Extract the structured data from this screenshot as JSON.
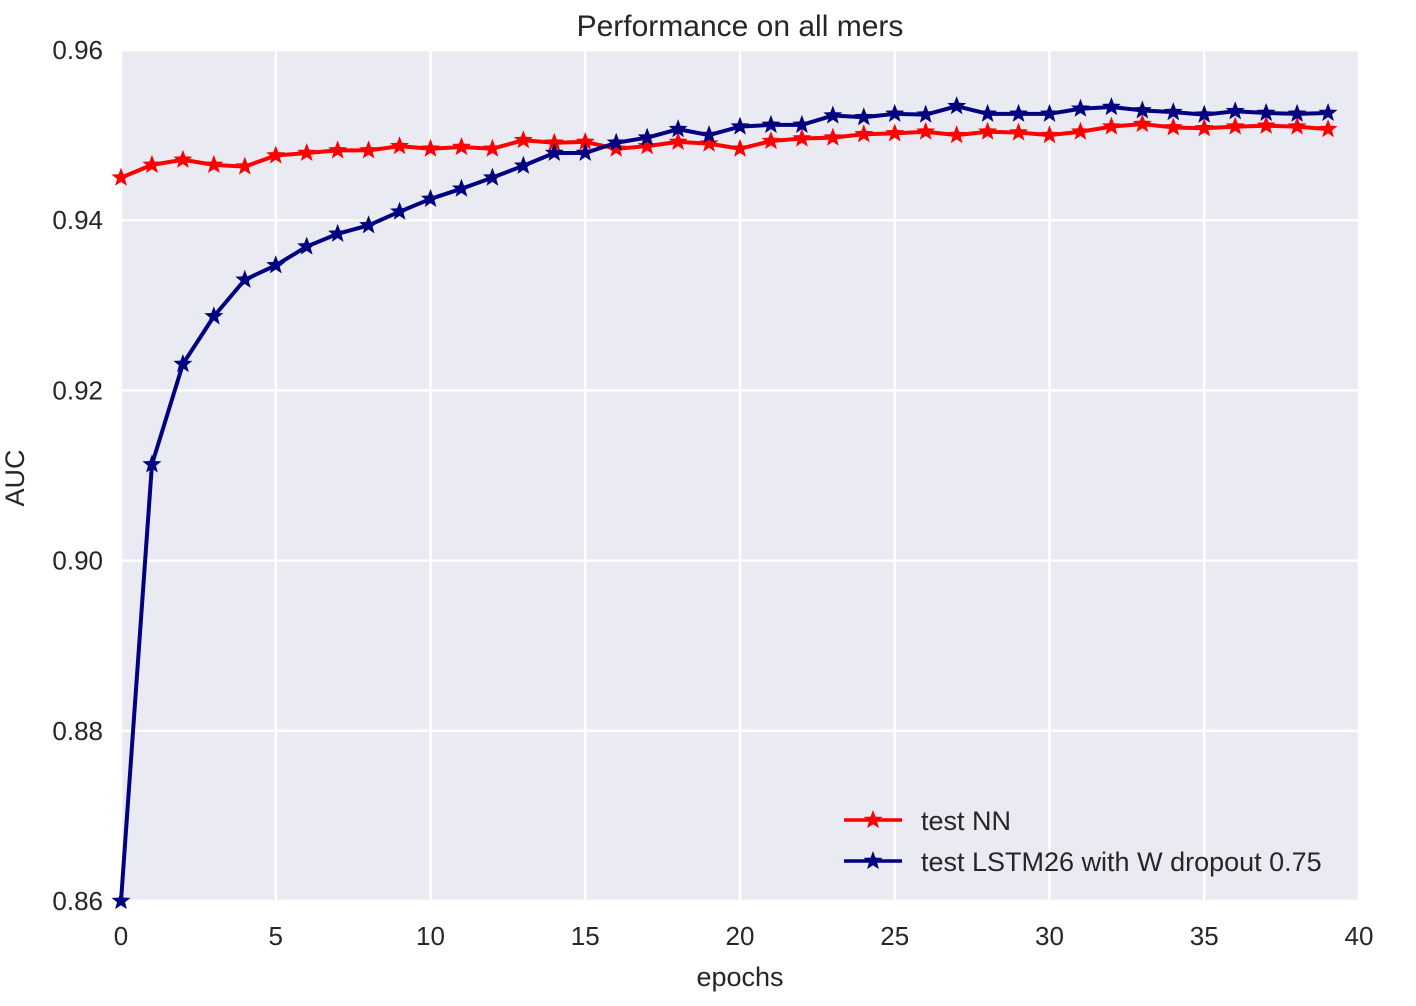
{
  "chart_data": {
    "type": "line",
    "title": "Performance on all mers",
    "xlabel": "epochs",
    "ylabel": "AUC",
    "xlim": [
      0,
      40
    ],
    "ylim": [
      0.86,
      0.96
    ],
    "xticks": [
      "0",
      "5",
      "10",
      "15",
      "20",
      "25",
      "30",
      "35",
      "40"
    ],
    "yticks": [
      "0.86",
      "0.88",
      "0.90",
      "0.92",
      "0.94",
      "0.96"
    ],
    "grid": true,
    "legend_position": "bottom-right",
    "background": "#eaeaf2",
    "x": [
      0,
      1,
      2,
      3,
      4,
      5,
      6,
      7,
      8,
      9,
      10,
      11,
      12,
      13,
      14,
      15,
      16,
      17,
      18,
      19,
      20,
      21,
      22,
      23,
      24,
      25,
      26,
      27,
      28,
      29,
      30,
      31,
      32,
      33,
      34,
      35,
      36,
      37,
      38,
      39
    ],
    "series": [
      {
        "name": "test NN",
        "color": "#ff0000",
        "marker": "star",
        "values": [
          0.945,
          0.9465,
          0.9471,
          0.9465,
          0.9463,
          0.9476,
          0.9479,
          0.9482,
          0.9482,
          0.9487,
          0.9484,
          0.9486,
          0.9484,
          0.9494,
          0.9491,
          0.9492,
          0.9484,
          0.9487,
          0.9492,
          0.949,
          0.9484,
          0.9493,
          0.9496,
          0.9497,
          0.9501,
          0.9502,
          0.9504,
          0.95,
          0.9504,
          0.9503,
          0.95,
          0.9504,
          0.951,
          0.9513,
          0.9509,
          0.9508,
          0.951,
          0.9511,
          0.951,
          0.9507
        ]
      },
      {
        "name": "test LSTM26 with W dropout 0.75",
        "color": "#000080",
        "marker": "star",
        "values": [
          0.86,
          0.9113,
          0.9231,
          0.9287,
          0.933,
          0.9347,
          0.9369,
          0.9384,
          0.9394,
          0.941,
          0.9425,
          0.9437,
          0.945,
          0.9464,
          0.9479,
          0.9479,
          0.9491,
          0.9497,
          0.9507,
          0.95,
          0.951,
          0.9512,
          0.9512,
          0.9523,
          0.9521,
          0.9525,
          0.9524,
          0.9534,
          0.9525,
          0.9525,
          0.9525,
          0.9531,
          0.9533,
          0.9529,
          0.9527,
          0.9524,
          0.9528,
          0.9526,
          0.9525,
          0.9526
        ]
      }
    ]
  }
}
